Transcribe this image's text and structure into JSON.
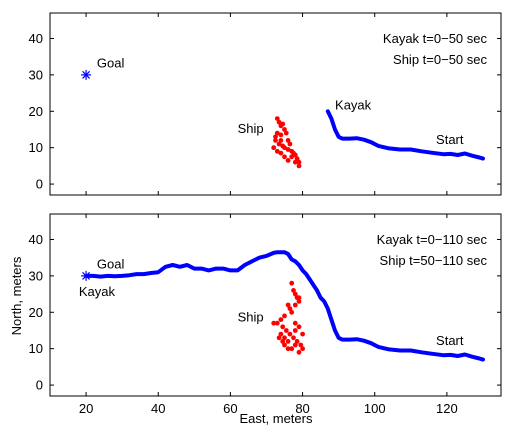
{
  "figure": {
    "xlabel": "East, meters",
    "ylabel": "North, meters"
  },
  "chart_data": [
    {
      "type": "scatter",
      "panel": "top",
      "xlim": [
        10,
        135
      ],
      "ylim": [
        -3,
        47
      ],
      "x_ticks": [
        20,
        40,
        60,
        80,
        100,
        120
      ],
      "y_ticks": [
        0,
        10,
        20,
        30,
        40
      ],
      "grid": false,
      "legend": "none",
      "info_lines": [
        "Kayak t=0−50 sec",
        "Ship t=0−50 sec"
      ],
      "markers": [
        {
          "name": "goal",
          "x": 20,
          "y": 30,
          "symbol": "*",
          "color": "#0000ff"
        }
      ],
      "annotations": [
        {
          "name": "goal",
          "text": "Goal",
          "x": 23,
          "y": 32
        },
        {
          "name": "ship",
          "text": "Ship",
          "x": 62,
          "y": 14
        },
        {
          "name": "kayak",
          "text": "Kayak",
          "x": 89,
          "y": 20.5
        },
        {
          "name": "start",
          "text": "Start",
          "x": 117,
          "y": 11
        }
      ],
      "series": [
        {
          "role": "kayak-track",
          "color": "#0000ff",
          "style": "line",
          "x": [
            87,
            88,
            89,
            90,
            91,
            93,
            95,
            97,
            99,
            101,
            104,
            107,
            110,
            113,
            116,
            119,
            121,
            123,
            125,
            127,
            129,
            130
          ],
          "y": [
            20,
            18,
            15,
            13,
            12.5,
            12.5,
            12.6,
            12.2,
            11.5,
            10.5,
            9.8,
            9.5,
            9.5,
            9.0,
            8.6,
            8.2,
            8.3,
            8.0,
            8.4,
            7.8,
            7.3,
            7.0
          ]
        },
        {
          "role": "ship-positions",
          "color": "#ff0000",
          "style": "points",
          "x": [
            73,
            73.5,
            74,
            74.5,
            75,
            73,
            72.5,
            74,
            75.5,
            76,
            74,
            73.5,
            75,
            76.5,
            77,
            78,
            78.5,
            79,
            77.5,
            76,
            74.5,
            73,
            72,
            72.5,
            74,
            75,
            76,
            77,
            78,
            79
          ],
          "y": [
            18,
            17,
            16,
            16.5,
            15,
            14,
            13,
            13.5,
            14,
            12,
            12,
            11,
            10,
            11,
            9,
            8,
            7,
            6,
            8.5,
            9.5,
            10.5,
            9,
            10,
            12,
            8.5,
            7.5,
            6.5,
            7.5,
            6,
            5
          ]
        }
      ]
    },
    {
      "type": "scatter",
      "panel": "bottom",
      "xlim": [
        10,
        135
      ],
      "ylim": [
        -3,
        47
      ],
      "x_ticks": [
        20,
        40,
        60,
        80,
        100,
        120
      ],
      "y_ticks": [
        0,
        10,
        20,
        30,
        40
      ],
      "grid": false,
      "legend": "none",
      "info_lines": [
        "Kayak t=0−110 sec",
        "Ship t=50−110 sec"
      ],
      "markers": [
        {
          "name": "goal",
          "x": 20,
          "y": 30,
          "symbol": "*",
          "color": "#0000ff"
        }
      ],
      "annotations": [
        {
          "name": "goal",
          "text": "Goal",
          "x": 23,
          "y": 32
        },
        {
          "name": "kayak",
          "text": "Kayak",
          "x": 18,
          "y": 24.5
        },
        {
          "name": "ship",
          "text": "Ship",
          "x": 62,
          "y": 17.5
        },
        {
          "name": "start",
          "text": "Start",
          "x": 117,
          "y": 11
        }
      ],
      "series": [
        {
          "role": "kayak-track",
          "color": "#0000ff",
          "style": "line",
          "x": [
            130,
            129,
            127,
            125,
            123,
            121,
            119,
            116,
            113,
            110,
            107,
            104,
            101,
            99,
            97,
            95,
            93,
            91,
            90,
            89,
            88,
            87,
            86,
            85,
            84,
            83,
            82,
            81,
            80,
            79,
            78,
            77,
            76,
            75,
            74,
            73,
            72,
            70,
            68,
            66,
            64,
            62,
            60,
            58,
            56,
            54,
            52,
            50,
            48,
            46,
            44,
            42,
            40,
            38,
            36,
            34,
            32,
            30,
            28,
            26,
            24,
            22,
            20
          ],
          "y": [
            7,
            7.3,
            7.8,
            8.4,
            8.0,
            8.3,
            8.2,
            8.6,
            9.0,
            9.5,
            9.5,
            9.8,
            10.5,
            11.5,
            12.2,
            12.6,
            12.5,
            12.5,
            13,
            15,
            18,
            21,
            23,
            24,
            26,
            27.5,
            29,
            30.5,
            31.5,
            33,
            34,
            34.5,
            36,
            36.5,
            36.5,
            36.5,
            36.3,
            35.5,
            35,
            34,
            33,
            31.5,
            31.5,
            32,
            32,
            31.5,
            32,
            32,
            33,
            32.5,
            33,
            32.5,
            31,
            30.8,
            30.5,
            30.5,
            30.2,
            30,
            29.9,
            30,
            29.8,
            30,
            30
          ]
        },
        {
          "role": "ship-positions",
          "color": "#ff0000",
          "style": "points",
          "x": [
            77,
            77.5,
            78,
            78.5,
            79,
            76,
            76.5,
            77,
            78,
            79,
            75,
            74,
            73,
            74.5,
            75.5,
            76.5,
            78,
            79,
            80,
            73.5,
            74.5,
            75,
            76,
            77,
            78,
            79,
            80,
            74,
            75,
            72,
            76,
            77.5,
            78.5,
            79.5,
            78
          ],
          "y": [
            28,
            26,
            25,
            24,
            23,
            22,
            21,
            20,
            22,
            24,
            19,
            18,
            17,
            16,
            15,
            14,
            15,
            16,
            14,
            13,
            12,
            11,
            12,
            10,
            11,
            9,
            10,
            14,
            13,
            17,
            10,
            13,
            12,
            11,
            17
          ]
        }
      ]
    }
  ]
}
